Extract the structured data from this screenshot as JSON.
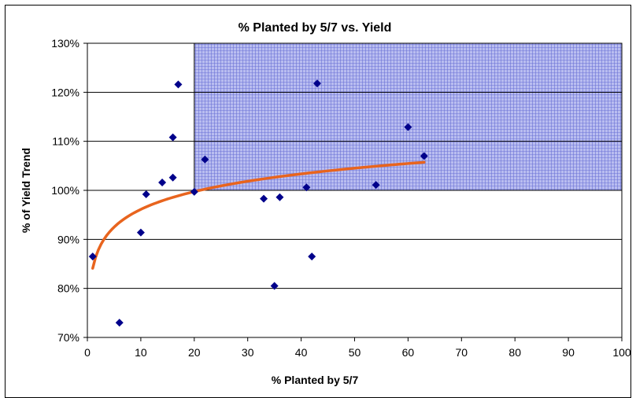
{
  "chart_data": {
    "type": "scatter",
    "title": "% Planted by 5/7 vs. Yield",
    "xlabel": "% Planted by 5/7",
    "ylabel": "% of Yield Trend",
    "xlim": [
      0,
      100
    ],
    "ylim": [
      70,
      130
    ],
    "x_ticks": [
      "0",
      "10",
      "20",
      "30",
      "40",
      "50",
      "60",
      "70",
      "80",
      "90",
      "100"
    ],
    "y_ticks": [
      "70%",
      "80%",
      "90%",
      "100%",
      "110%",
      "120%",
      "130%"
    ],
    "grid": "horizontal",
    "highlight_region": {
      "x": [
        20,
        100
      ],
      "y": [
        100,
        130
      ]
    },
    "points": [
      {
        "x": 1,
        "y": 86.5
      },
      {
        "x": 6,
        "y": 73
      },
      {
        "x": 10,
        "y": 91.4
      },
      {
        "x": 11,
        "y": 99.2
      },
      {
        "x": 14,
        "y": 101.6
      },
      {
        "x": 16,
        "y": 110.8
      },
      {
        "x": 16,
        "y": 102.6
      },
      {
        "x": 17,
        "y": 121.6
      },
      {
        "x": 20,
        "y": 99.7
      },
      {
        "x": 22,
        "y": 106.3
      },
      {
        "x": 33,
        "y": 98.3
      },
      {
        "x": 35,
        "y": 80.5
      },
      {
        "x": 36,
        "y": 98.6
      },
      {
        "x": 41,
        "y": 100.6
      },
      {
        "x": 42,
        "y": 86.5
      },
      {
        "x": 43,
        "y": 121.8
      },
      {
        "x": 54,
        "y": 101.1
      },
      {
        "x": 60,
        "y": 112.9
      },
      {
        "x": 63,
        "y": 107
      }
    ],
    "trendline": {
      "type": "logarithmic",
      "intercept": 84.1,
      "slope": 5.22,
      "x_range": [
        1,
        63
      ]
    },
    "colors": {
      "points": "#00008B",
      "trend": "#E8641E",
      "highlight": "#A9AEE8"
    }
  }
}
